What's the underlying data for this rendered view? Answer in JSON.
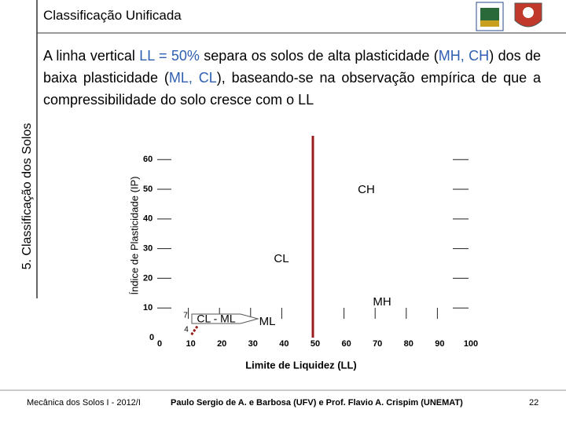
{
  "header": {
    "title": "Classificação Unificada"
  },
  "side_label": "5. Classificação dos Solos",
  "body": [
    {
      "text": "A linha vertical "
    },
    {
      "text": "LL = 50%",
      "color": "#2e5fb0"
    },
    {
      "text": " separa os solos de alta plasticidade ("
    },
    {
      "text": "MH, CH",
      "color": "#2e5fb0"
    },
    {
      "text": ") dos de baixa plasticidade ("
    },
    {
      "text": "ML, CL",
      "color": "#2e5fb0"
    },
    {
      "text": "), baseando-se na observação empírica de que a compressibilidade do solo cresce com o LL"
    }
  ],
  "chart_data": {
    "type": "line",
    "xlabel": "Limite de Liquidez (LL)",
    "ylabel": "Índice de Plasticidade (IP)",
    "xlim": [
      0,
      100
    ],
    "ylim": [
      0,
      68
    ],
    "xticks": [
      0,
      10,
      20,
      30,
      40,
      50,
      60,
      70,
      80,
      90,
      100
    ],
    "yticks": [
      0,
      10,
      20,
      30,
      40,
      50,
      60
    ],
    "series": [
      {
        "color": "#9b1c1c",
        "x": [
          50,
          50
        ],
        "values": [
          0,
          68
        ]
      },
      {
        "color": "#9b1c1c",
        "dash": true,
        "x": [
          11,
          13
        ],
        "values": [
          1,
          4
        ]
      }
    ],
    "annotations": [
      "CH",
      "CL",
      "MH",
      "ML",
      "CL - ML",
      "7",
      "4"
    ]
  },
  "footer": {
    "left": "Mecânica dos Solos I - 2012/I",
    "center": "Paulo Sergio de A. e Barbosa (UFV) e Prof. Flavio  A. Crispim (UNEMAT)",
    "page": "22"
  }
}
